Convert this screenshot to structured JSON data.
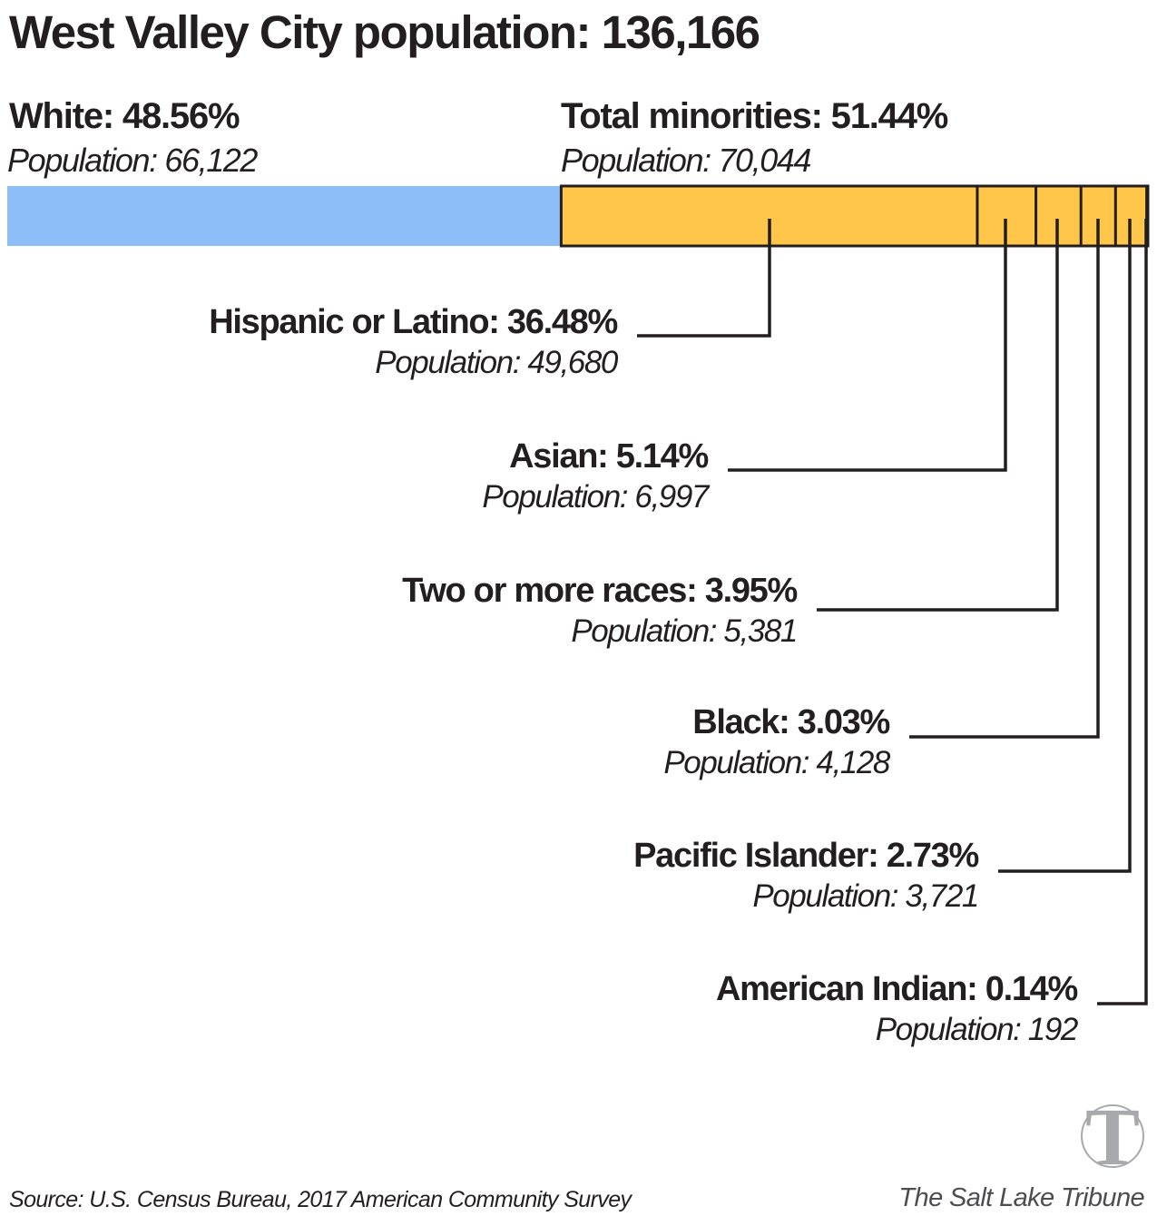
{
  "title": "West Valley City population: 136,166",
  "white": {
    "label": "White: 48.56%",
    "population": "Population: 66,122"
  },
  "minorities": {
    "label": "Total minorities: 51.44%",
    "population": "Population: 70,044"
  },
  "colors": {
    "white": "#8ebef7",
    "minorities": "#ffc649",
    "stroke": "#231f20"
  },
  "chart_data": {
    "type": "bar",
    "stacked": true,
    "total": 136166,
    "series": [
      {
        "name": "White",
        "value": 48.56,
        "population": 66122
      },
      {
        "name": "Total minorities",
        "value": 51.44,
        "population": 70044
      }
    ],
    "categories": [
      "Hispanic or Latino",
      "Asian",
      "Two or more races",
      "Black",
      "Pacific Islander",
      "American Indian"
    ],
    "values": [
      36.48,
      5.14,
      3.95,
      3.03,
      2.73,
      0.14
    ],
    "populations": [
      49680,
      6997,
      5381,
      4128,
      3721,
      192
    ]
  },
  "labels": [
    {
      "label": "Hispanic or Latino: 36.48%",
      "population": "Population: 49,680"
    },
    {
      "label": "Asian: 5.14%",
      "population": "Population: 6,997"
    },
    {
      "label": "Two or more races: 3.95%",
      "population": "Population: 5,381"
    },
    {
      "label": "Black: 3.03%",
      "population": "Population: 4,128"
    },
    {
      "label": "Pacific Islander: 2.73%",
      "population": "Population: 3,721"
    },
    {
      "label": "American Indian: 0.14%",
      "population": "Population: 192"
    }
  ],
  "source": "Source: U.S. Census Bureau, 2017 American Community Survey",
  "credit": "The Salt Lake Tribune",
  "logo": {
    "icon": "tribune-t-logo",
    "letter": "T",
    "color": "#a7a9ac"
  }
}
